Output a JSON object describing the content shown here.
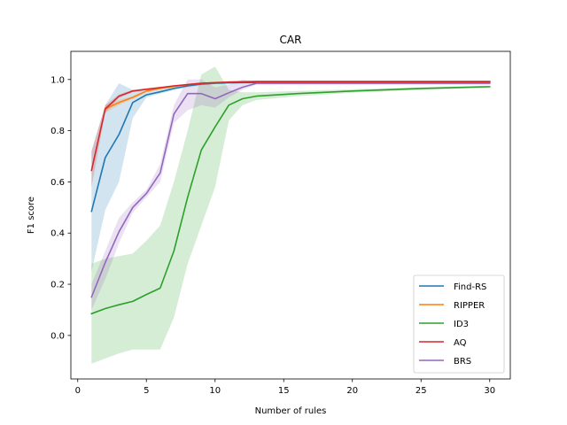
{
  "chart_data": {
    "type": "line",
    "title": "CAR",
    "xlabel": "Number of rules",
    "ylabel": "F1 score",
    "xlim": [
      -0.5,
      31.5
    ],
    "ylim": [
      -0.17,
      1.11
    ],
    "xticks": [
      0,
      5,
      10,
      15,
      20,
      25,
      30
    ],
    "xtick_labels": [
      "0",
      "5",
      "10",
      "15",
      "20",
      "25",
      "30"
    ],
    "yticks": [
      0.0,
      0.2,
      0.4,
      0.6,
      0.8,
      1.0
    ],
    "ytick_labels": [
      "0.0",
      "0.2",
      "0.4",
      "0.6",
      "0.8",
      "1.0"
    ],
    "grid": false,
    "legend_position": "bottom-right",
    "series": [
      {
        "name": "Find-RS",
        "color": "#1f77b4",
        "x": [
          1,
          2,
          3,
          4,
          5,
          6,
          7,
          8,
          9,
          10,
          11,
          12,
          13,
          30
        ],
        "y": [
          0.485,
          0.695,
          0.785,
          0.91,
          0.94,
          0.952,
          0.965,
          0.975,
          0.982,
          0.985,
          0.987,
          0.988,
          0.988,
          0.988
        ],
        "band_low": [
          0.25,
          0.49,
          0.6,
          0.85,
          0.93,
          0.945,
          0.958,
          0.97,
          0.978,
          0.982,
          0.985,
          0.986,
          0.987,
          0.987
        ],
        "band_high": [
          0.72,
          0.9,
          0.985,
          0.96,
          0.955,
          0.96,
          0.972,
          0.98,
          0.986,
          0.988,
          0.989,
          0.99,
          0.99,
          0.99
        ]
      },
      {
        "name": "RIPPER",
        "color": "#ff7f0e",
        "x": [
          2,
          3,
          4,
          5,
          6,
          7,
          8,
          9,
          10,
          11,
          12,
          13,
          30
        ],
        "y": [
          0.885,
          0.91,
          0.93,
          0.955,
          0.965,
          0.973,
          0.98,
          0.985,
          0.987,
          0.99,
          0.992,
          0.993,
          0.993
        ],
        "band_low": [
          0.87,
          0.9,
          0.925,
          0.95,
          0.962,
          0.97,
          0.977,
          0.983,
          0.985,
          0.988,
          0.99,
          0.991,
          0.991
        ],
        "band_high": [
          0.9,
          0.92,
          0.935,
          0.96,
          0.968,
          0.976,
          0.983,
          0.987,
          0.989,
          0.992,
          0.994,
          0.995,
          0.995
        ]
      },
      {
        "name": "ID3",
        "color": "#2ca02c",
        "x": [
          1,
          2,
          3,
          4,
          5,
          6,
          7,
          8,
          9,
          10,
          11,
          12,
          13,
          16,
          20,
          25,
          30
        ],
        "y": [
          0.085,
          0.105,
          0.12,
          0.133,
          0.16,
          0.185,
          0.33,
          0.54,
          0.725,
          0.815,
          0.9,
          0.925,
          0.935,
          0.945,
          0.955,
          0.965,
          0.972
        ],
        "band_low": [
          -0.11,
          -0.09,
          -0.07,
          -0.055,
          -0.055,
          -0.055,
          0.07,
          0.28,
          0.43,
          0.58,
          0.84,
          0.9,
          0.92,
          0.935,
          0.948,
          0.96,
          0.968
        ],
        "band_high": [
          0.28,
          0.3,
          0.31,
          0.32,
          0.37,
          0.43,
          0.6,
          0.8,
          1.02,
          1.05,
          0.96,
          0.95,
          0.95,
          0.955,
          0.962,
          0.97,
          0.976
        ]
      },
      {
        "name": "AQ",
        "color": "#d62728",
        "x": [
          1,
          2,
          3,
          4,
          5,
          6,
          7,
          8,
          9,
          10,
          11,
          12,
          13,
          30
        ],
        "y": [
          0.645,
          0.885,
          0.935,
          0.955,
          0.962,
          0.968,
          0.975,
          0.98,
          0.985,
          0.988,
          0.99,
          0.99,
          0.991,
          0.991
        ],
        "band_low": [
          0.58,
          0.87,
          0.928,
          0.95,
          0.958,
          0.965,
          0.972,
          0.978,
          0.983,
          0.986,
          0.988,
          0.989,
          0.99,
          0.99
        ],
        "band_high": [
          0.72,
          0.9,
          0.942,
          0.96,
          0.966,
          0.972,
          0.978,
          0.983,
          0.987,
          0.99,
          0.992,
          0.992,
          0.993,
          0.993
        ]
      },
      {
        "name": "BRS",
        "color": "#9467bd",
        "x": [
          1,
          2,
          3,
          4,
          5,
          6,
          7,
          8,
          9,
          10,
          11,
          12,
          13,
          30
        ],
        "y": [
          0.15,
          0.285,
          0.405,
          0.5,
          0.555,
          0.635,
          0.865,
          0.945,
          0.945,
          0.925,
          0.948,
          0.97,
          0.985,
          0.985
        ],
        "band_low": [
          0.1,
          0.22,
          0.36,
          0.48,
          0.54,
          0.6,
          0.83,
          0.88,
          0.9,
          0.89,
          0.93,
          0.96,
          0.98,
          0.98
        ],
        "band_high": [
          0.2,
          0.33,
          0.46,
          0.52,
          0.57,
          0.67,
          0.9,
          1.0,
          1.0,
          0.97,
          0.98,
          1.0,
          0.99,
          0.99
        ]
      }
    ]
  }
}
